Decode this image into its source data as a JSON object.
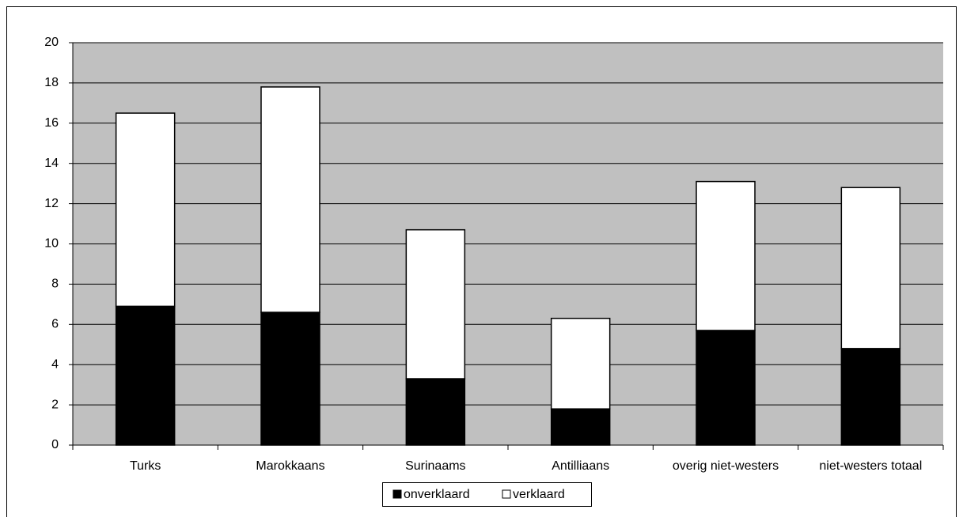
{
  "chart_data": {
    "type": "stacked-bar",
    "categories": [
      "Turks",
      "Marokkaans",
      "Surinaams",
      "Antilliaans",
      "overig niet-westers",
      "niet-westers totaal"
    ],
    "series": [
      {
        "name": "onverklaard",
        "color": "#000000",
        "values": [
          6.9,
          6.6,
          3.3,
          1.8,
          5.7,
          4.8
        ]
      },
      {
        "name": "verklaard",
        "color": "#ffffff",
        "values": [
          9.6,
          11.2,
          7.4,
          4.5,
          7.4,
          8.0
        ]
      }
    ],
    "ylim": [
      0,
      20
    ],
    "yticks": [
      0,
      2,
      4,
      6,
      8,
      10,
      12,
      14,
      16,
      18,
      20
    ],
    "grid": true,
    "plot_background": "#c0c0c0",
    "legend": "bottom"
  }
}
